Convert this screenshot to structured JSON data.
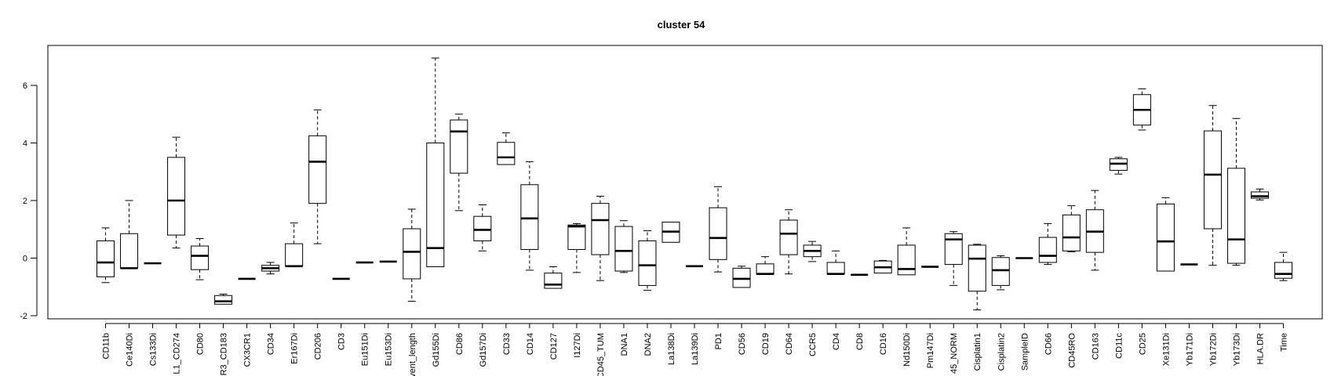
{
  "chart_data": {
    "type": "boxplot",
    "title": "cluster 54",
    "xlabel": "",
    "ylabel": "",
    "ylim": [
      -2.1,
      7.1
    ],
    "yticks": [
      -2,
      0,
      2,
      4,
      6
    ],
    "grid": false,
    "legend": "none",
    "categories": [
      "CD11b",
      "Ce140Di",
      "Cs133Di",
      "L1_CD274",
      "CD80",
      "R3_CD183",
      "CX3CR1",
      "CD34",
      "Er167Di",
      "CD206",
      "CD3",
      "Eu151Di",
      "Eu153Di",
      "vent_length",
      "Gd155Di",
      "CD86",
      "Gd157Di",
      "CD33",
      "CD14",
      "CD127",
      "I127Di",
      "CD45_TUM",
      "DNA1",
      "DNA2",
      "La138Di",
      "La139Di",
      "PD1",
      "CD56",
      "CD19",
      "CD64",
      "CCR5",
      "CD4",
      "CD8",
      "CD16",
      "Nd150Di",
      "Pm147Di",
      "45_NORM",
      "Cisplatin1",
      "Cisplatin2",
      "SampleID",
      "CD66",
      "CD45RO",
      "CD163",
      "CD11c",
      "CD25",
      "Xe131Di",
      "Yb171Di",
      "Yb172Di",
      "Yb173Di",
      "HLA.DR",
      "Time"
    ],
    "boxes": [
      {
        "min": -0.85,
        "q1": -0.65,
        "median": -0.15,
        "q3": 0.6,
        "max": 1.05
      },
      {
        "min": -0.35,
        "q1": -0.35,
        "median": -0.35,
        "q3": 0.85,
        "max": 2.0
      },
      {
        "min": -0.18,
        "q1": -0.18,
        "median": -0.18,
        "q3": -0.18,
        "max": -0.18
      },
      {
        "min": 0.35,
        "q1": 0.8,
        "median": 2.0,
        "q3": 3.5,
        "max": 4.2
      },
      {
        "min": -0.75,
        "q1": -0.4,
        "median": 0.08,
        "q3": 0.42,
        "max": 0.68
      },
      {
        "min": -1.6,
        "q1": -1.6,
        "median": -1.5,
        "q3": -1.3,
        "max": -1.25
      },
      {
        "min": -0.72,
        "q1": -0.72,
        "median": -0.72,
        "q3": -0.72,
        "max": -0.72
      },
      {
        "min": -0.55,
        "q1": -0.45,
        "median": -0.35,
        "q3": -0.25,
        "max": -0.15
      },
      {
        "min": -0.28,
        "q1": -0.28,
        "median": -0.28,
        "q3": 0.5,
        "max": 1.22
      },
      {
        "min": 0.5,
        "q1": 1.9,
        "median": 3.35,
        "q3": 4.25,
        "max": 5.15
      },
      {
        "min": -0.72,
        "q1": -0.72,
        "median": -0.72,
        "q3": -0.72,
        "max": -0.72
      },
      {
        "min": -0.15,
        "q1": -0.15,
        "median": -0.15,
        "q3": -0.15,
        "max": -0.15
      },
      {
        "min": -0.12,
        "q1": -0.12,
        "median": -0.12,
        "q3": -0.12,
        "max": -0.12
      },
      {
        "min": -1.5,
        "q1": -0.72,
        "median": 0.22,
        "q3": 1.02,
        "max": 1.7
      },
      {
        "min": -0.3,
        "q1": -0.3,
        "median": 0.35,
        "q3": 4.0,
        "max": 6.95
      },
      {
        "min": 1.65,
        "q1": 2.95,
        "median": 4.4,
        "q3": 4.8,
        "max": 5.0
      },
      {
        "min": 0.25,
        "q1": 0.6,
        "median": 0.98,
        "q3": 1.45,
        "max": 1.85
      },
      {
        "min": 3.25,
        "q1": 3.25,
        "median": 3.5,
        "q3": 4.02,
        "max": 4.35
      },
      {
        "min": -0.42,
        "q1": 0.3,
        "median": 1.38,
        "q3": 2.55,
        "max": 3.35
      },
      {
        "min": -1.05,
        "q1": -1.05,
        "median": -0.92,
        "q3": -0.52,
        "max": -0.3
      },
      {
        "min": -0.5,
        "q1": 0.3,
        "median": 1.1,
        "q3": 1.15,
        "max": 1.2
      },
      {
        "min": -0.78,
        "q1": 0.12,
        "median": 1.32,
        "q3": 1.9,
        "max": 2.15
      },
      {
        "min": -0.5,
        "q1": -0.45,
        "median": 0.25,
        "q3": 1.1,
        "max": 1.3
      },
      {
        "min": -1.12,
        "q1": -0.95,
        "median": -0.25,
        "q3": 0.6,
        "max": 0.95
      },
      {
        "min": 0.55,
        "q1": 0.55,
        "median": 0.92,
        "q3": 1.25,
        "max": 1.25
      },
      {
        "min": -0.28,
        "q1": -0.28,
        "median": -0.28,
        "q3": -0.28,
        "max": -0.28
      },
      {
        "min": -0.48,
        "q1": -0.05,
        "median": 0.7,
        "q3": 1.75,
        "max": 2.48
      },
      {
        "min": -1.02,
        "q1": -1.02,
        "median": -0.72,
        "q3": -0.35,
        "max": -0.28
      },
      {
        "min": -0.55,
        "q1": -0.55,
        "median": -0.55,
        "q3": -0.2,
        "max": 0.05
      },
      {
        "min": -0.55,
        "q1": 0.12,
        "median": 0.85,
        "q3": 1.32,
        "max": 1.68
      },
      {
        "min": -0.12,
        "q1": 0.05,
        "median": 0.25,
        "q3": 0.45,
        "max": 0.58
      },
      {
        "min": -0.55,
        "q1": -0.55,
        "median": -0.55,
        "q3": -0.15,
        "max": 0.25
      },
      {
        "min": -0.58,
        "q1": -0.58,
        "median": -0.58,
        "q3": -0.58,
        "max": -0.58
      },
      {
        "min": -0.52,
        "q1": -0.52,
        "median": -0.32,
        "q3": -0.1,
        "max": -0.08
      },
      {
        "min": -0.58,
        "q1": -0.58,
        "median": -0.38,
        "q3": 0.45,
        "max": 1.05
      },
      {
        "min": -0.3,
        "q1": -0.3,
        "median": -0.3,
        "q3": -0.3,
        "max": -0.3
      },
      {
        "min": -0.95,
        "q1": -0.22,
        "median": 0.65,
        "q3": 0.85,
        "max": 0.92
      },
      {
        "min": -1.8,
        "q1": -1.15,
        "median": -0.02,
        "q3": 0.45,
        "max": 0.48
      },
      {
        "min": -1.1,
        "q1": -0.95,
        "median": -0.42,
        "q3": 0.02,
        "max": 0.08
      },
      {
        "min": 0,
        "q1": 0,
        "median": 0,
        "q3": 0,
        "max": 0
      },
      {
        "min": -0.22,
        "q1": -0.15,
        "median": 0.08,
        "q3": 0.72,
        "max": 1.2
      },
      {
        "min": 0.22,
        "q1": 0.25,
        "median": 0.72,
        "q3": 1.5,
        "max": 1.82
      },
      {
        "min": -0.42,
        "q1": 0.2,
        "median": 0.92,
        "q3": 1.68,
        "max": 2.35
      },
      {
        "min": 2.92,
        "q1": 3.05,
        "median": 3.28,
        "q3": 3.45,
        "max": 3.5
      },
      {
        "min": 4.45,
        "q1": 4.62,
        "median": 5.15,
        "q3": 5.68,
        "max": 5.88
      },
      {
        "min": -0.45,
        "q1": -0.45,
        "median": 0.58,
        "q3": 1.88,
        "max": 2.1
      },
      {
        "min": -0.22,
        "q1": -0.22,
        "median": -0.22,
        "q3": -0.22,
        "max": -0.22
      },
      {
        "min": -0.25,
        "q1": 1.02,
        "median": 2.9,
        "q3": 4.42,
        "max": 5.3
      },
      {
        "min": -0.25,
        "q1": -0.18,
        "median": 0.65,
        "q3": 3.12,
        "max": 4.85
      },
      {
        "min": 2.02,
        "q1": 2.08,
        "median": 2.15,
        "q3": 2.3,
        "max": 2.4
      },
      {
        "min": -0.78,
        "q1": -0.7,
        "median": -0.55,
        "q3": -0.15,
        "max": 0.2
      }
    ]
  }
}
